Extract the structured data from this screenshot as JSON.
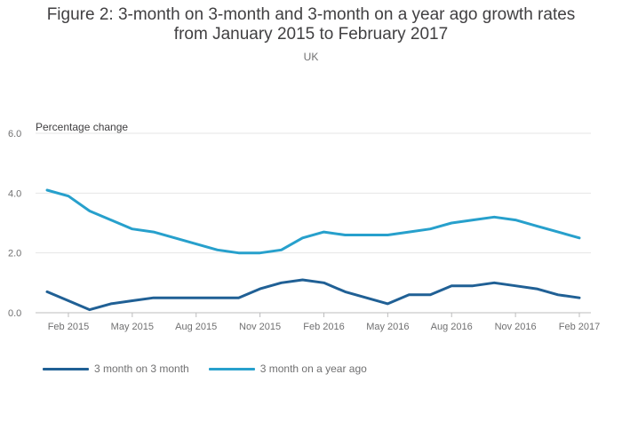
{
  "chart_data": {
    "type": "line",
    "title_lines": [
      "Figure 2: 3-month on 3-month and 3-month on a year ago growth rates",
      "from January 2015 to February 2017"
    ],
    "subtitle": "UK",
    "ylabel": "Percentage change",
    "xlabel": "",
    "ylim": [
      0,
      6
    ],
    "yticks": [
      "0.0",
      "2.0",
      "4.0",
      "6.0"
    ],
    "xtick_labels": [
      {
        "index": 1,
        "label": "Feb 2015"
      },
      {
        "index": 4,
        "label": "May 2015"
      },
      {
        "index": 7,
        "label": "Aug 2015"
      },
      {
        "index": 10,
        "label": "Nov 2015"
      },
      {
        "index": 13,
        "label": "Feb 2016"
      },
      {
        "index": 16,
        "label": "May 2016"
      },
      {
        "index": 19,
        "label": "Aug 2016"
      },
      {
        "index": 22,
        "label": "Nov 2016"
      },
      {
        "index": 25,
        "label": "Feb 2017"
      }
    ],
    "categories": [
      "Jan 2015",
      "Feb 2015",
      "Mar 2015",
      "Apr 2015",
      "May 2015",
      "Jun 2015",
      "Jul 2015",
      "Aug 2015",
      "Sep 2015",
      "Oct 2015",
      "Nov 2015",
      "Dec 2015",
      "Jan 2016",
      "Feb 2016",
      "Mar 2016",
      "Apr 2016",
      "May 2016",
      "Jun 2016",
      "Jul 2016",
      "Aug 2016",
      "Sep 2016",
      "Oct 2016",
      "Nov 2016",
      "Dec 2016",
      "Jan 2017",
      "Feb 2017"
    ],
    "series": [
      {
        "name": "3 month on 3 month",
        "color": "#206095",
        "values": [
          0.7,
          0.4,
          0.1,
          0.3,
          0.4,
          0.5,
          0.5,
          0.5,
          0.5,
          0.5,
          0.8,
          1.0,
          1.1,
          1.0,
          0.7,
          0.5,
          0.3,
          0.6,
          0.6,
          0.9,
          0.9,
          1.0,
          0.9,
          0.8,
          0.6,
          0.5
        ]
      },
      {
        "name": "3 month on a year ago",
        "color": "#27a0cc",
        "values": [
          4.1,
          3.9,
          3.4,
          3.1,
          2.8,
          2.7,
          2.5,
          2.3,
          2.1,
          2.0,
          2.0,
          2.1,
          2.5,
          2.7,
          2.6,
          2.6,
          2.6,
          2.7,
          2.8,
          3.0,
          3.1,
          3.2,
          3.1,
          2.9,
          2.7,
          2.5
        ]
      }
    ],
    "grid": true,
    "legend_position": "bottom-left"
  }
}
